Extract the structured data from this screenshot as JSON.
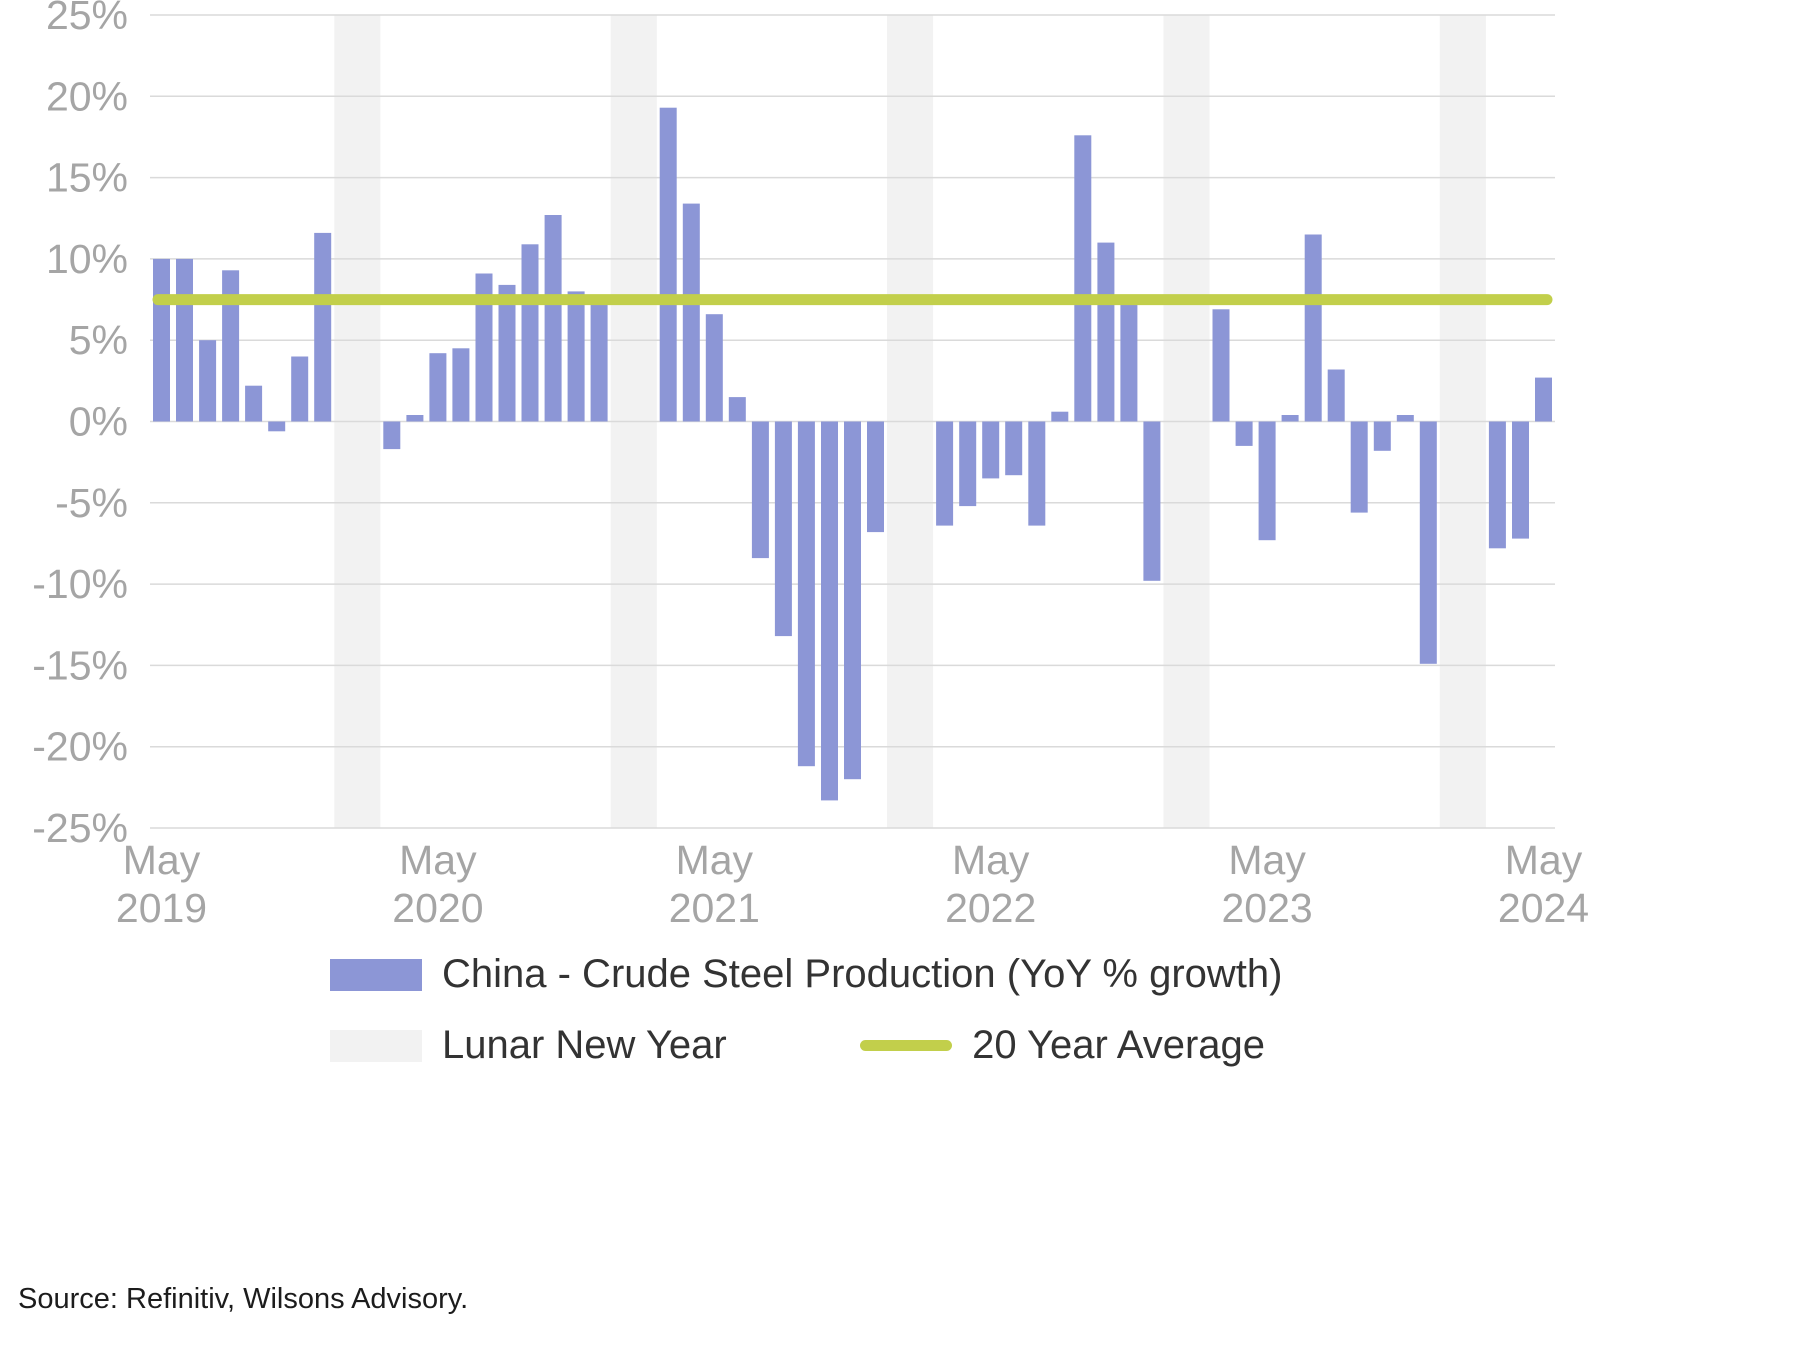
{
  "colors": {
    "bar": "#8C96D6",
    "average_line": "#C2CF4B",
    "lunar_band": "#F2F2F2",
    "gridline": "#DADADA",
    "axis_text": "#A5A5A5",
    "legend_text": "#333333"
  },
  "chart_data": {
    "type": "bar",
    "title": "",
    "ylabel": "YoY % growth",
    "ylim": [
      -25,
      25
    ],
    "grid": "horizontal",
    "legend_position": "bottom",
    "average": {
      "label": "20 Year Average",
      "value": 7.5
    },
    "yticks": [
      {
        "v": 25,
        "label": "25%"
      },
      {
        "v": 20,
        "label": "20%"
      },
      {
        "v": 15,
        "label": "15%"
      },
      {
        "v": 10,
        "label": "10%"
      },
      {
        "v": 5,
        "label": "5%"
      },
      {
        "v": 0,
        "label": "0%"
      },
      {
        "v": -5,
        "label": "-5%"
      },
      {
        "v": -10,
        "label": "-10%"
      },
      {
        "v": -15,
        "label": "-15%"
      },
      {
        "v": -20,
        "label": "-20%"
      },
      {
        "v": -25,
        "label": "-25%"
      }
    ],
    "x_ticks": [
      {
        "index": 0,
        "line1": "May",
        "line2": "2019"
      },
      {
        "index": 12,
        "line1": "May",
        "line2": "2020"
      },
      {
        "index": 24,
        "line1": "May",
        "line2": "2021"
      },
      {
        "index": 36,
        "line1": "May",
        "line2": "2022"
      },
      {
        "index": 48,
        "line1": "May",
        "line2": "2023"
      },
      {
        "index": 60,
        "line1": "May",
        "line2": "2024"
      }
    ],
    "lunar_new_year_bands": [
      [
        8,
        9
      ],
      [
        20,
        21
      ],
      [
        32,
        33
      ],
      [
        44,
        45
      ],
      [
        56,
        57
      ]
    ],
    "months": [
      {
        "m": "May 2019",
        "v": 10.0
      },
      {
        "m": "Jun 2019",
        "v": 10.0
      },
      {
        "m": "Jul 2019",
        "v": 5.0
      },
      {
        "m": "Aug 2019",
        "v": 9.3
      },
      {
        "m": "Sep 2019",
        "v": 2.2
      },
      {
        "m": "Oct 2019",
        "v": -0.6
      },
      {
        "m": "Nov 2019",
        "v": 4.0
      },
      {
        "m": "Dec 2019",
        "v": 11.6
      },
      {
        "m": "Jan 2020",
        "v": null
      },
      {
        "m": "Feb 2020",
        "v": null
      },
      {
        "m": "Mar 2020",
        "v": -1.7
      },
      {
        "m": "Apr 2020",
        "v": 0.4
      },
      {
        "m": "May 2020",
        "v": 4.2
      },
      {
        "m": "Jun 2020",
        "v": 4.5
      },
      {
        "m": "Jul 2020",
        "v": 9.1
      },
      {
        "m": "Aug 2020",
        "v": 8.4
      },
      {
        "m": "Sep 2020",
        "v": 10.9
      },
      {
        "m": "Oct 2020",
        "v": 12.7
      },
      {
        "m": "Nov 2020",
        "v": 8.0
      },
      {
        "m": "Dec 2020",
        "v": 7.3
      },
      {
        "m": "Jan 2021",
        "v": null
      },
      {
        "m": "Feb 2021",
        "v": null
      },
      {
        "m": "Mar 2021",
        "v": 19.3
      },
      {
        "m": "Apr 2021",
        "v": 13.4
      },
      {
        "m": "May 2021",
        "v": 6.6
      },
      {
        "m": "Jun 2021",
        "v": 1.5
      },
      {
        "m": "Jul 2021",
        "v": -8.4
      },
      {
        "m": "Aug 2021",
        "v": -13.2
      },
      {
        "m": "Sep 2021",
        "v": -21.2
      },
      {
        "m": "Oct 2021",
        "v": -23.3
      },
      {
        "m": "Nov 2021",
        "v": -22.0
      },
      {
        "m": "Dec 2021",
        "v": -6.8
      },
      {
        "m": "Jan 2022",
        "v": null
      },
      {
        "m": "Feb 2022",
        "v": null
      },
      {
        "m": "Mar 2022",
        "v": -6.4
      },
      {
        "m": "Apr 2022",
        "v": -5.2
      },
      {
        "m": "May 2022",
        "v": -3.5
      },
      {
        "m": "Jun 2022",
        "v": -3.3
      },
      {
        "m": "Jul 2022",
        "v": -6.4
      },
      {
        "m": "Aug 2022",
        "v": 0.6
      },
      {
        "m": "Sep 2022",
        "v": 17.6
      },
      {
        "m": "Oct 2022",
        "v": 11.0
      },
      {
        "m": "Nov 2022",
        "v": 7.3
      },
      {
        "m": "Dec 2022",
        "v": -9.8
      },
      {
        "m": "Jan 2023",
        "v": null
      },
      {
        "m": "Feb 2023",
        "v": null
      },
      {
        "m": "Mar 2023",
        "v": 6.9
      },
      {
        "m": "Apr 2023",
        "v": -1.5
      },
      {
        "m": "May 2023",
        "v": -7.3
      },
      {
        "m": "Jun 2023",
        "v": 0.4
      },
      {
        "m": "Jul 2023",
        "v": 11.5
      },
      {
        "m": "Aug 2023",
        "v": 3.2
      },
      {
        "m": "Sep 2023",
        "v": -5.6
      },
      {
        "m": "Oct 2023",
        "v": -1.8
      },
      {
        "m": "Nov 2023",
        "v": 0.4
      },
      {
        "m": "Dec 2023",
        "v": -14.9
      },
      {
        "m": "Jan 2024",
        "v": null
      },
      {
        "m": "Feb 2024",
        "v": null
      },
      {
        "m": "Mar 2024",
        "v": -7.8
      },
      {
        "m": "Apr 2024",
        "v": -7.2
      },
      {
        "m": "May 2024",
        "v": 2.7
      }
    ]
  },
  "legend": {
    "series_label": "China - Crude Steel Production (YoY % growth)",
    "lunar_label": "Lunar New Year",
    "average_label": "20 Year Average"
  },
  "source": "Source: Refinitiv, Wilsons Advisory."
}
